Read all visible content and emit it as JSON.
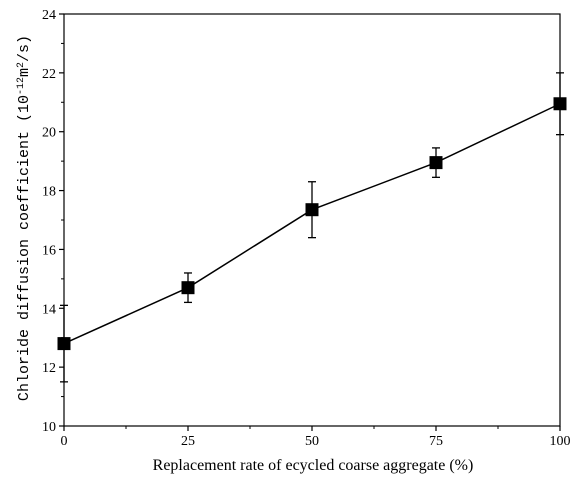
{
  "chart_data": {
    "type": "line",
    "title": "",
    "xlabel": "Replacement rate of ecycled coarse aggregate (%)",
    "ylabel": {
      "text": "Chloride diffusion coefficient (10",
      "exponent1": "-12",
      "unit": "m",
      "exponent2": "2",
      "tail": "/s)"
    },
    "xlim": [
      0,
      100
    ],
    "ylim": [
      10,
      24
    ],
    "x_ticks": [
      0,
      25,
      50,
      75,
      100
    ],
    "y_ticks": [
      10,
      12,
      14,
      16,
      18,
      20,
      22,
      24
    ],
    "grid": false,
    "legend": "none",
    "marker": "square",
    "color": "#000000",
    "series": [
      {
        "x": [
          0,
          25,
          50,
          75,
          100
        ],
        "y": [
          12.8,
          14.7,
          17.35,
          18.95,
          20.95
        ],
        "error": [
          1.3,
          0.5,
          0.95,
          0.5,
          1.05
        ]
      }
    ]
  }
}
